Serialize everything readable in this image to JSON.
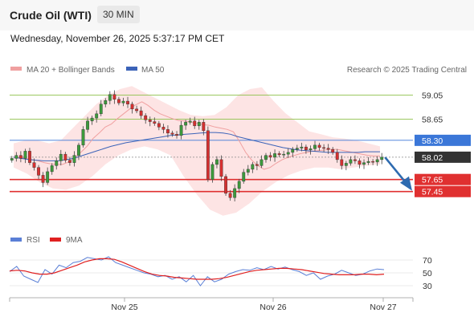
{
  "header": {
    "title": "Crude Oil (WTI)",
    "timeframe": "30 MIN"
  },
  "datetime": "Wednesday, November 26, 2025 5:37:17 PM CET",
  "legend": {
    "ma20": "MA 20 + Bollinger Bands",
    "ma50": "MA 50",
    "research": "Research © 2025 Trading Central"
  },
  "rsi_legend": {
    "rsi": "RSI",
    "ma": "9MA"
  },
  "colors": {
    "up": "#3c9a3c",
    "down": "#d63030",
    "band": "#fcd9d9",
    "ma20": "#f0a0a0",
    "ma50": "#3b63b8",
    "resistance": "#8dc14a",
    "support": "#e03030",
    "pivot": "#3b77d8",
    "current": "#333333",
    "arrow": "#2e6bb0"
  },
  "chart_data": [
    {
      "type": "candlestick",
      "title": "Crude Oil (WTI)",
      "interval": "30 MIN",
      "x_labels": [
        "Nov 25",
        "Nov 26",
        "Nov 27"
      ],
      "ylim": [
        56.9,
        59.35
      ],
      "close": [
        58.0,
        58.05,
        58.0,
        58.12,
        57.93,
        57.85,
        57.72,
        57.6,
        57.78,
        57.88,
        57.96,
        58.07,
        57.97,
        57.93,
        58.05,
        58.22,
        58.48,
        58.62,
        58.67,
        58.74,
        58.9,
        58.96,
        59.06,
        58.98,
        58.92,
        58.95,
        58.9,
        58.82,
        58.79,
        58.71,
        58.64,
        58.61,
        58.58,
        58.52,
        58.48,
        58.42,
        58.4,
        58.38,
        58.55,
        58.6,
        58.62,
        58.54,
        58.6,
        58.46,
        57.65,
        57.9,
        57.98,
        57.7,
        57.42,
        57.35,
        57.5,
        57.62,
        57.77,
        57.82,
        57.9,
        57.88,
        57.98,
        58.05,
        58.02,
        58.08,
        58.06,
        58.07,
        58.1,
        58.15,
        58.17,
        58.19,
        58.14,
        58.16,
        58.22,
        58.18,
        58.17,
        58.15,
        58.1,
        57.98,
        57.88,
        57.92,
        57.98,
        57.96,
        57.9,
        57.93,
        57.95,
        57.94,
        57.98,
        58.02
      ],
      "ma20": [
        58.02,
        58.02,
        58.0,
        57.98,
        57.96,
        57.93,
        57.91,
        57.9,
        57.9,
        57.94,
        58.01,
        58.1,
        58.2,
        58.33,
        58.42,
        58.52,
        58.57,
        58.66,
        58.74,
        58.82,
        58.89,
        58.94,
        58.88,
        58.8,
        58.74,
        58.7,
        58.66,
        58.63,
        58.62,
        58.6,
        58.58,
        58.56,
        58.55,
        58.52,
        58.5,
        58.48,
        58.44,
        58.28,
        58.1,
        57.97,
        57.88,
        57.82,
        57.85,
        57.92,
        57.98,
        58.02,
        58.05,
        58.08,
        58.1,
        58.12,
        58.13,
        58.14,
        58.15,
        58.15,
        58.13,
        58.11,
        58.09,
        58.07,
        58.05,
        58.04,
        58.04
      ],
      "ma50": [
        58.02,
        58.0,
        57.98,
        57.97,
        57.96,
        57.96,
        57.96,
        57.98,
        58.0,
        58.04,
        58.08,
        58.12,
        58.16,
        58.2,
        58.23,
        58.26,
        58.28,
        58.3,
        58.32,
        58.34,
        58.36,
        58.38,
        58.39,
        58.4,
        58.41,
        58.42,
        58.43,
        58.43,
        58.42,
        58.4,
        58.36,
        58.33,
        58.3,
        58.27,
        58.24,
        58.21,
        58.18,
        58.16,
        58.14,
        58.13,
        58.12,
        58.11,
        58.1,
        58.1,
        58.1,
        58.1,
        58.1,
        58.11,
        58.11,
        58.11
      ],
      "bb_upper": [
        58.25,
        58.3,
        58.3,
        58.25,
        58.3,
        58.5,
        58.7,
        58.9,
        59.05,
        59.15,
        59.2,
        59.1,
        59.0,
        58.9,
        58.8,
        58.72,
        58.7,
        58.72,
        58.85,
        59.05,
        59.15,
        59.18,
        58.95,
        58.75,
        58.6,
        58.45,
        58.4,
        58.35,
        58.33,
        58.3,
        58.25,
        58.2
      ],
      "bb_lower": [
        57.85,
        57.75,
        57.6,
        57.5,
        57.48,
        57.55,
        57.7,
        57.9,
        58.05,
        58.15,
        58.2,
        58.15,
        58.05,
        57.7,
        57.4,
        57.15,
        57.05,
        57.1,
        57.25,
        57.45,
        57.6,
        57.72,
        57.8,
        57.85,
        57.85,
        57.82,
        57.85,
        57.88,
        57.9
      ],
      "levels": [
        {
          "label": "59.05",
          "value": 59.05,
          "kind": "resistance"
        },
        {
          "label": "58.65",
          "value": 58.65,
          "kind": "resistance"
        },
        {
          "label": "58.30",
          "value": 58.3,
          "kind": "pivot"
        },
        {
          "label": "58.02",
          "value": 58.02,
          "kind": "current"
        },
        {
          "label": "57.65",
          "value": 57.65,
          "kind": "support"
        },
        {
          "label": "57.45",
          "value": 57.45,
          "kind": "support"
        }
      ]
    },
    {
      "type": "line",
      "title": "",
      "ylim": [
        20,
        80
      ],
      "y_ticks": [
        "70",
        "50",
        "30"
      ],
      "series": [
        {
          "name": "RSI",
          "values": [
            52,
            60,
            45,
            40,
            35,
            55,
            48,
            62,
            58,
            66,
            68,
            74,
            72,
            70,
            75,
            66,
            62,
            58,
            54,
            50,
            48,
            44,
            46,
            40,
            44,
            36,
            46,
            30,
            44,
            36,
            40,
            48,
            52,
            55,
            54,
            58,
            55,
            60,
            56,
            59,
            55,
            52,
            46,
            50,
            40,
            45,
            48,
            54,
            50,
            46,
            48,
            53,
            56,
            55
          ]
        },
        {
          "name": "9MA",
          "values": [
            53,
            54,
            53,
            50,
            48,
            48,
            50,
            54,
            58,
            62,
            67,
            70,
            72,
            72,
            71,
            67,
            62,
            57,
            52,
            48,
            46,
            45,
            43,
            42,
            41,
            40,
            40,
            40,
            41,
            43,
            46,
            49,
            52,
            54,
            55,
            56,
            57,
            57,
            56,
            55,
            53,
            51,
            49,
            48,
            47,
            47,
            47,
            48,
            48,
            47,
            48
          ]
        }
      ]
    }
  ]
}
